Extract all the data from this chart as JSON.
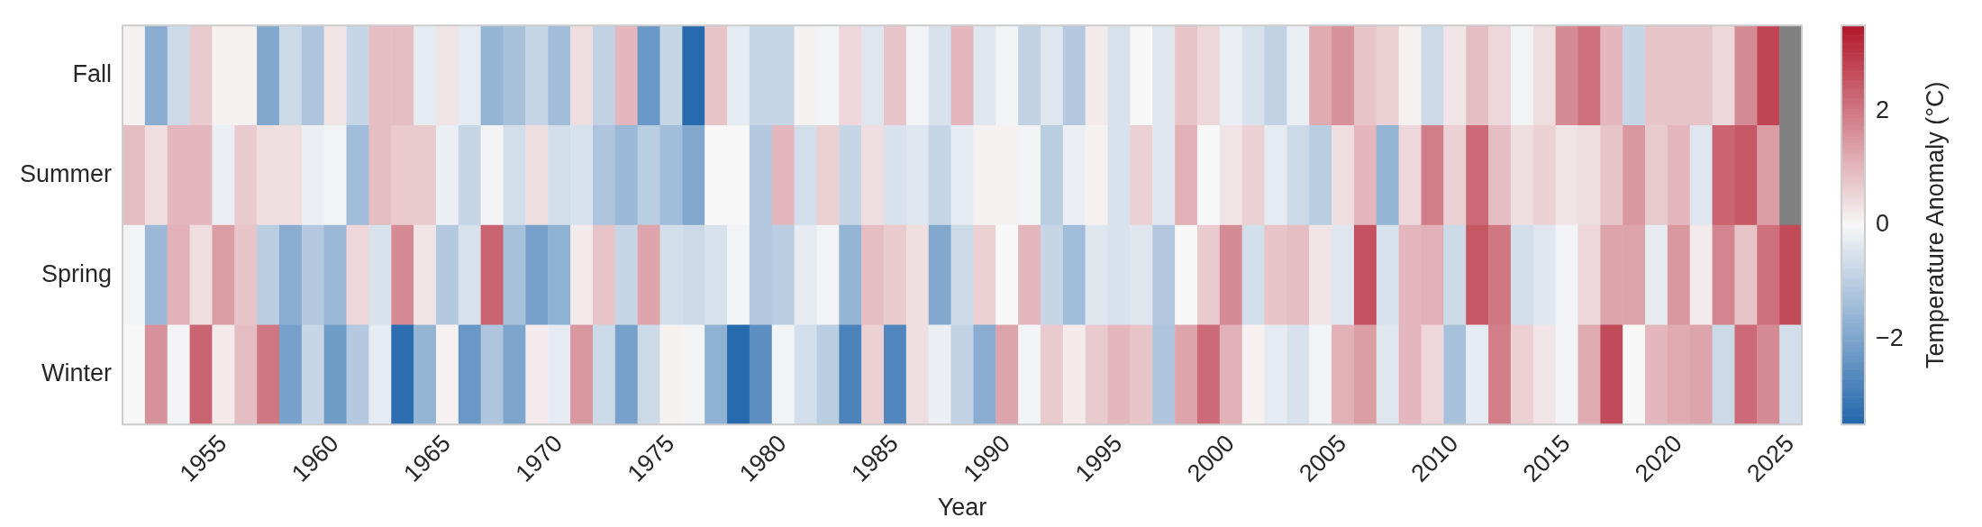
{
  "chart_data": {
    "type": "heatmap",
    "xlabel": "Year",
    "clabel": "Temperature Anomaly (°C)",
    "categories": [
      null,
      null,
      null,
      null,
      "1955",
      null,
      null,
      null,
      null,
      "1960",
      null,
      null,
      null,
      null,
      "1965",
      null,
      null,
      null,
      null,
      "1970",
      null,
      null,
      null,
      null,
      "1975",
      null,
      null,
      null,
      null,
      "1980",
      null,
      null,
      null,
      null,
      "1985",
      null,
      null,
      null,
      null,
      "1990",
      null,
      null,
      null,
      null,
      "1995",
      null,
      null,
      null,
      null,
      "2000",
      null,
      null,
      null,
      null,
      "2005",
      null,
      null,
      null,
      null,
      "2010",
      null,
      null,
      null,
      null,
      "2015",
      null,
      null,
      null,
      null,
      "2020",
      null,
      null,
      null,
      null,
      "2025"
    ],
    "y_categories": [
      "Fall",
      "Summer",
      "Spring",
      "Winter"
    ],
    "cells": [
      [
        0.1,
        -1.8,
        -0.7,
        0.7,
        0.1,
        0.1,
        -1.9,
        -0.7,
        -1.2,
        0.3,
        -0.8,
        0.9,
        0.9,
        -0.3,
        0.3,
        -0.3,
        -1.6,
        -1.3,
        -0.8,
        -1.4,
        0.4,
        -0.9,
        1.0,
        -2.3,
        -0.8,
        -3.4,
        0.8,
        -0.3,
        -0.8,
        -0.8,
        0.1,
        -0.1,
        0.5,
        -0.4,
        0.8,
        -0.1,
        -0.5,
        1.0,
        -0.4,
        -0.1,
        -0.9,
        -0.4,
        -1.1,
        0.2,
        -0.5,
        0,
        -0.4,
        0.8,
        0.5,
        -0.2,
        -0.5,
        -0.9,
        -0.2,
        1.2,
        1.6,
        0.8,
        0.6,
        0.1,
        -0.7,
        0.3,
        0.9,
        0.5,
        -0.1,
        0.4,
        1.7,
        2.1,
        1.0,
        -0.8,
        0.8,
        0.8,
        0.8,
        0.5,
        1.7,
        2.8,
        null
      ],
      [
        0.9,
        0.4,
        1.0,
        1.0,
        -0.2,
        0.7,
        0.4,
        0.4,
        -0.2,
        -0.1,
        -1.4,
        0.9,
        0.7,
        0.7,
        -0.2,
        -0.8,
        -0.1,
        -0.6,
        0.4,
        -0.6,
        -0.5,
        -1.2,
        -1.5,
        -1.0,
        -1.4,
        -1.9,
        0,
        0,
        -1.1,
        1.0,
        -0.6,
        0.6,
        -0.8,
        0.4,
        -0.5,
        -0.4,
        -0.8,
        -0.3,
        0.1,
        0.1,
        -0.1,
        -1.0,
        -0.2,
        0.1,
        -0.5,
        0.6,
        -0.4,
        1.1,
        0,
        0.3,
        0.6,
        -0.3,
        -0.7,
        -1.0,
        0.4,
        1.0,
        -1.6,
        0.5,
        1.9,
        0.6,
        2.2,
        0.9,
        0.4,
        0.6,
        0.3,
        0.4,
        0.8,
        1.5,
        0.7,
        1.0,
        -0.4,
        2.3,
        2.5,
        1.4,
        null
      ],
      [
        -0.1,
        -1.5,
        1.1,
        0.4,
        1.4,
        0.8,
        -1.0,
        -1.8,
        -1.1,
        -1.5,
        0.5,
        -0.5,
        1.7,
        0.3,
        -1.1,
        -0.5,
        2.3,
        -1.3,
        -2.1,
        -1.7,
        0.2,
        0.8,
        -0.8,
        1.3,
        -0.6,
        -0.7,
        -0.5,
        -0.1,
        -1.1,
        -1.0,
        -0.3,
        -0.1,
        -1.6,
        0.9,
        0.7,
        0.4,
        -1.9,
        -0.7,
        0.6,
        0,
        1.0,
        -0.8,
        -1.4,
        -0.4,
        -0.5,
        -0.4,
        -1.1,
        0,
        0.7,
        1.7,
        -0.6,
        0.8,
        0.9,
        0.3,
        -0.4,
        2.6,
        -0.5,
        1.0,
        1.1,
        -0.7,
        2.5,
        2.0,
        -0.6,
        -0.4,
        -0.1,
        0.5,
        1.3,
        1.3,
        -0.3,
        1.5,
        0.2,
        1.8,
        0.8,
        2.1,
        2.7
      ],
      [
        0,
        1.6,
        -0.1,
        2.3,
        0.2,
        0.9,
        2.0,
        -2.1,
        -0.8,
        -2.2,
        -1.1,
        -0.3,
        -3.3,
        -1.6,
        0.1,
        -2.3,
        -1.2,
        -2.0,
        0.2,
        -0.3,
        1.5,
        -0.7,
        -2.1,
        -0.7,
        0.1,
        -0.1,
        -1.7,
        -3.4,
        -2.5,
        -0.1,
        -0.6,
        -1.0,
        -2.8,
        0.6,
        -2.7,
        0.4,
        -0.2,
        -0.9,
        -1.8,
        1.3,
        -0.1,
        0.7,
        0.2,
        0.7,
        1.0,
        0.8,
        -1.2,
        1.3,
        2.2,
        1.1,
        0.1,
        -0.3,
        -0.5,
        -0.1,
        1.1,
        1.4,
        -0.4,
        1.0,
        0.5,
        -1.3,
        -0.3,
        1.9,
        0.6,
        0.3,
        -0.1,
        1.2,
        2.7,
        0,
        1.0,
        1.2,
        1.3,
        -0.7,
        2.2,
        1.7,
        -0.6
      ]
    ],
    "clim": [
      -3.5,
      3.5
    ],
    "cticks": [
      {
        "value": -2,
        "label": "−2"
      },
      0,
      2
    ]
  }
}
